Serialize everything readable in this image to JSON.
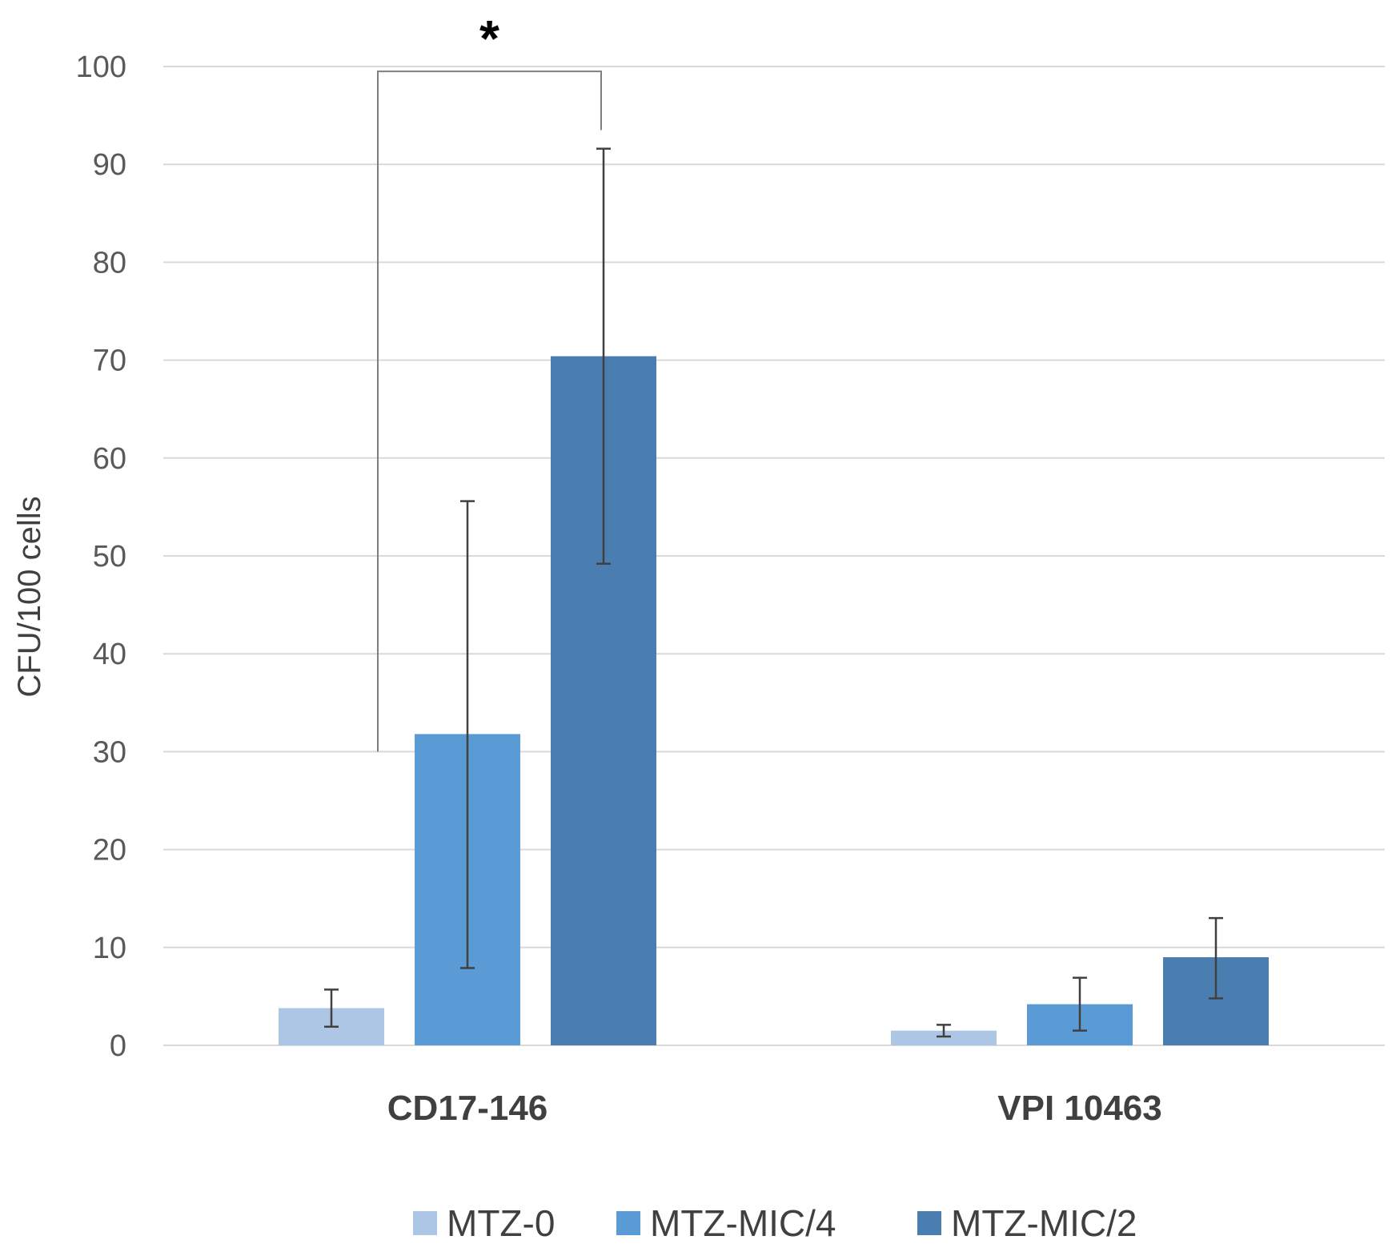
{
  "chart_data": {
    "type": "bar",
    "title": "",
    "xlabel": "",
    "ylabel": "CFU/100 cells",
    "ylim": [
      0,
      100
    ],
    "yticks": [
      0,
      10,
      20,
      30,
      40,
      50,
      60,
      70,
      80,
      90,
      100
    ],
    "grid": true,
    "legend_position": "bottom",
    "categories": [
      "CD17-146",
      "VPI 10463"
    ],
    "series": [
      {
        "name": "MTZ-0",
        "color": "#adc6e5",
        "values": [
          3.8,
          1.5
        ],
        "error_low": [
          1.9,
          0.9
        ],
        "error_high": [
          5.7,
          2.1
        ]
      },
      {
        "name": "MTZ-MIC/4",
        "color": "#5b9bd5",
        "values": [
          31.8,
          4.2
        ],
        "error_low": [
          7.9,
          1.5
        ],
        "error_high": [
          55.6,
          6.9
        ]
      },
      {
        "name": "MTZ-MIC/2",
        "color": "#4a7eb0",
        "values": [
          70.4,
          9.0
        ],
        "error_low": [
          49.2,
          4.8
        ],
        "error_high": [
          91.6,
          13.0
        ]
      }
    ],
    "annotations": [
      {
        "type": "significance_bracket",
        "text": "*",
        "category": "CD17-146",
        "from_series": "MTZ-0",
        "to_series": "MTZ-MIC/2",
        "from_y": 30,
        "to_y": 93.5,
        "top_y": 99.5
      }
    ]
  }
}
